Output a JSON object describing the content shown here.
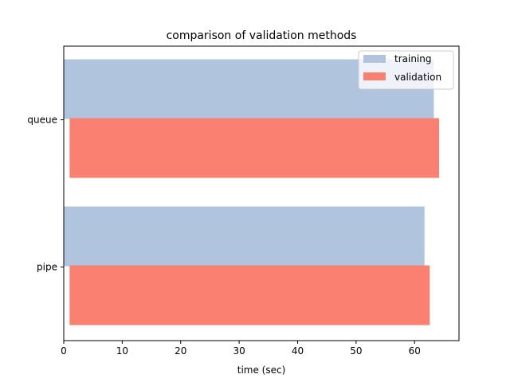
{
  "chart_data": {
    "type": "bar",
    "orientation": "horizontal",
    "title": "comparison of validation methods",
    "xlabel": "time (sec)",
    "ylabel": "",
    "categories": [
      "queue",
      "pipe"
    ],
    "series": [
      {
        "name": "training",
        "color": "#b0c4de",
        "start": [
          0,
          0
        ],
        "values": [
          63.3,
          61.7
        ]
      },
      {
        "name": "validation",
        "color": "#fa8072",
        "start": [
          1.0,
          1.0
        ],
        "values": [
          64.2,
          62.6
        ]
      }
    ],
    "xlim": [
      0,
      67.6
    ],
    "xticks": [
      "0",
      "10",
      "20",
      "30",
      "40",
      "50",
      "60"
    ],
    "grid": false,
    "legend": {
      "position": "top-right"
    }
  }
}
